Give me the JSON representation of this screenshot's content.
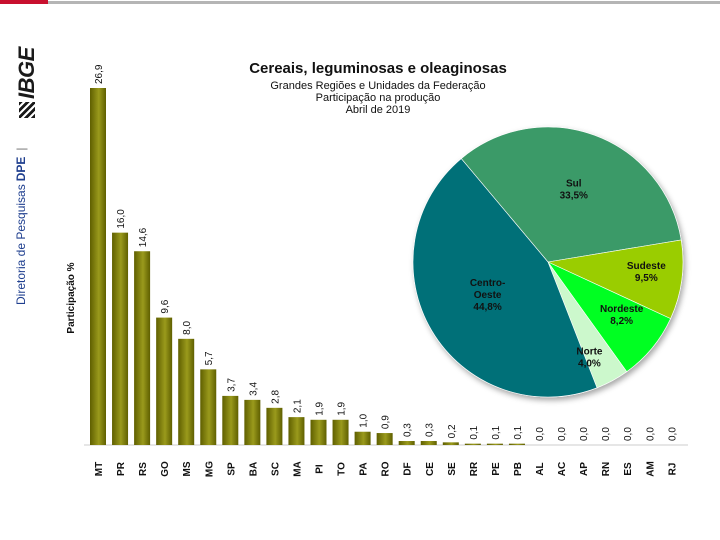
{
  "header": {
    "org_label": "Diretoria de Pesquisas",
    "org_bold": "DPE",
    "separator": "|",
    "logo_text": "IBGE"
  },
  "colors": {
    "bar_dark": "#5f5f00",
    "bar_light": "#9a9a1c",
    "pie_sul": "#3a9a68",
    "pie_sudeste": "#9acd00",
    "pie_nordeste": "#00ff22",
    "pie_norte": "#ccf8cc",
    "pie_centro": "#067078"
  },
  "chart_data": [
    {
      "type": "bar",
      "ylabel": "Participação %",
      "categories": [
        "MT",
        "PR",
        "RS",
        "GO",
        "MS",
        "MG",
        "SP",
        "BA",
        "SC",
        "MA",
        "PI",
        "TO",
        "PA",
        "RO",
        "DF",
        "CE",
        "SE",
        "RR",
        "PE",
        "PB",
        "AL",
        "AC",
        "AP",
        "RN",
        "ES",
        "AM",
        "RJ"
      ],
      "values": [
        26.9,
        16.0,
        14.6,
        9.6,
        8.0,
        5.7,
        3.7,
        3.4,
        2.8,
        2.1,
        1.9,
        1.9,
        1.0,
        0.9,
        0.3,
        0.3,
        0.2,
        0.1,
        0.1,
        0.1,
        0.0,
        0.0,
        0.0,
        0.0,
        0.0,
        0.0,
        0.0
      ],
      "value_labels": [
        "26,9",
        "16,0",
        "14,6",
        "9,6",
        "8,0",
        "5,7",
        "3,7",
        "3,4",
        "2,8",
        "2,1",
        "1,9",
        "1,9",
        "1,0",
        "0,9",
        "0,3",
        "0,3",
        "0,2",
        "0,1",
        "0,1",
        "0,1",
        "0,0",
        "0,0",
        "0,0",
        "0,0",
        "0,0",
        "0,0",
        "0,0"
      ],
      "ylim": [
        0,
        26.9
      ],
      "grid": false
    },
    {
      "type": "pie",
      "title": "Cereais, leguminosas e oleaginosas",
      "subtitle": [
        "Grandes Regiões e Unidades da Federação",
        "Participação na produção",
        "Abril de 2019"
      ],
      "slices": [
        {
          "name": "Sul",
          "value": 33.5,
          "label": "33,5%",
          "color": "#3a9a68"
        },
        {
          "name": "Sudeste",
          "value": 9.5,
          "label": "9,5%",
          "color": "#9acd00"
        },
        {
          "name": "Nordeste",
          "value": 8.2,
          "label": "8,2%",
          "color": "#00ff22"
        },
        {
          "name": "Norte",
          "value": 4.0,
          "label": "4,0%",
          "color": "#ccf8cc"
        },
        {
          "name": "Centro-Oeste",
          "value": 44.8,
          "label": "44,8%",
          "color": "#067078"
        }
      ]
    }
  ]
}
